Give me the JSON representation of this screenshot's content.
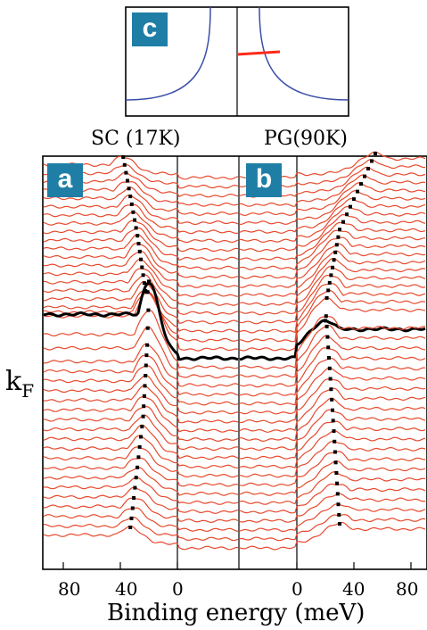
{
  "colors": {
    "curve": "#e64a2e",
    "kf_curve": "#000000",
    "fermi_surface": "#3a4ea8",
    "cut": "#ff2a1a",
    "badge": "#1f7ea6"
  },
  "inset": {
    "badge": "c"
  },
  "panels": [
    {
      "badge": "a",
      "title": "SC (17K)"
    },
    {
      "badge": "b",
      "title": "PG(90K)"
    }
  ],
  "kf_label": "k",
  "kf_subscript": "F",
  "chart_data": {
    "type": "line",
    "xlabel": "Binding energy (meV)",
    "x_ticks": [
      "80",
      "40",
      "0",
      "0",
      "40",
      "80"
    ],
    "panel_a": {
      "title": "SC (17K)",
      "xlim": [
        100,
        -5
      ],
      "num_curves": 42,
      "kf_index": 20,
      "dispersion_peak_meV": [
        {
          "k_index": 0,
          "energy": 38
        },
        {
          "k_index": 10,
          "energy": 28
        },
        {
          "k_index": 20,
          "energy": 20
        },
        {
          "k_index": 30,
          "energy": 24
        },
        {
          "k_index": 41,
          "energy": 33
        }
      ]
    },
    "panel_b": {
      "title": "PG(90K)",
      "xlim": [
        -50,
        100
      ],
      "num_curves": 42,
      "kf_index": 20,
      "dispersion_peak_meV": [
        {
          "k_index": 0,
          "energy": 55
        },
        {
          "k_index": 10,
          "energy": 30
        },
        {
          "k_index": 20,
          "energy": 20
        },
        {
          "k_index": 30,
          "energy": 25
        },
        {
          "k_index": 41,
          "energy": 30
        }
      ]
    }
  }
}
